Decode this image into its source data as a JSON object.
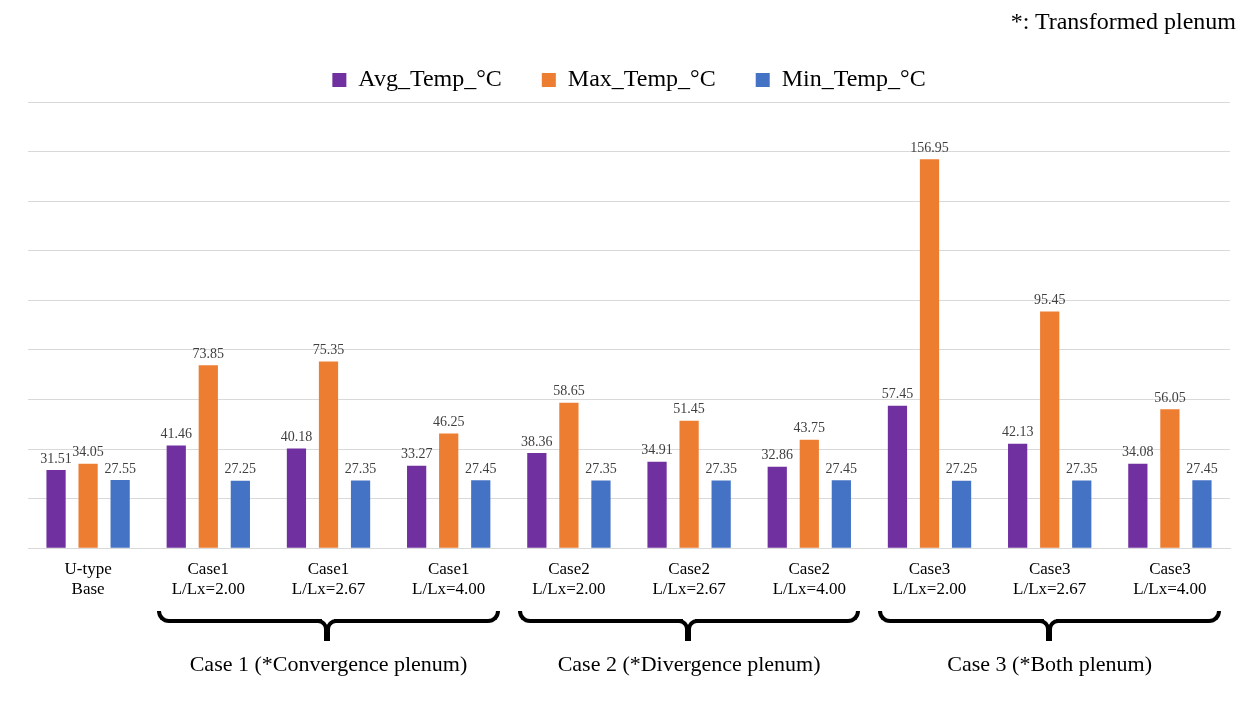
{
  "chart_data": {
    "type": "bar",
    "categories": [
      "U-type\nBase",
      "Case1\nL/Lx=2.00",
      "Case1\nL/Lx=2.67",
      "Case1\nL/Lx=4.00",
      "Case2\nL/Lx=2.00",
      "Case2\nL/Lx=2.67",
      "Case2\nL/Lx=4.00",
      "Case3\nL/Lx=2.00",
      "Case3\nL/Lx=2.67",
      "Case3\nL/Lx=4.00"
    ],
    "series": [
      {
        "name": "Avg_Temp_°C",
        "color": "#7030a0",
        "values": [
          31.51,
          41.46,
          40.18,
          33.27,
          38.36,
          34.91,
          32.86,
          57.45,
          42.13,
          34.08
        ]
      },
      {
        "name": "Max_Temp_°C",
        "color": "#ed7d31",
        "values": [
          34.05,
          73.85,
          75.35,
          46.25,
          58.65,
          51.45,
          43.75,
          156.95,
          95.45,
          56.05
        ]
      },
      {
        "name": "Min_Temp_°C",
        "color": "#4472c4",
        "values": [
          27.55,
          27.25,
          27.35,
          27.45,
          27.35,
          27.35,
          27.45,
          27.25,
          27.35,
          27.45
        ]
      }
    ],
    "ylim": [
      0,
      180
    ],
    "yticks": [
      {
        "value": 0,
        "label": null
      },
      {
        "value": 20,
        "label": null
      },
      {
        "value": 40,
        "label": null
      },
      {
        "value": 60,
        "label": null
      },
      {
        "value": 80,
        "label": null
      },
      {
        "value": 100,
        "label": null
      },
      {
        "value": 120,
        "label": null
      },
      {
        "value": 140,
        "label": null
      },
      {
        "value": 160,
        "label": null
      },
      {
        "value": 180,
        "label": null
      }
    ],
    "tick_labels": "x",
    "grid": "y",
    "legend": "top",
    "data_labels": true,
    "annotations": [
      "*: Transformed plenum",
      "Case 1 (*Convergence plenum)",
      "Case 2 (*Divergence plenum)",
      "Case 3 (*Both plenum)"
    ]
  }
}
